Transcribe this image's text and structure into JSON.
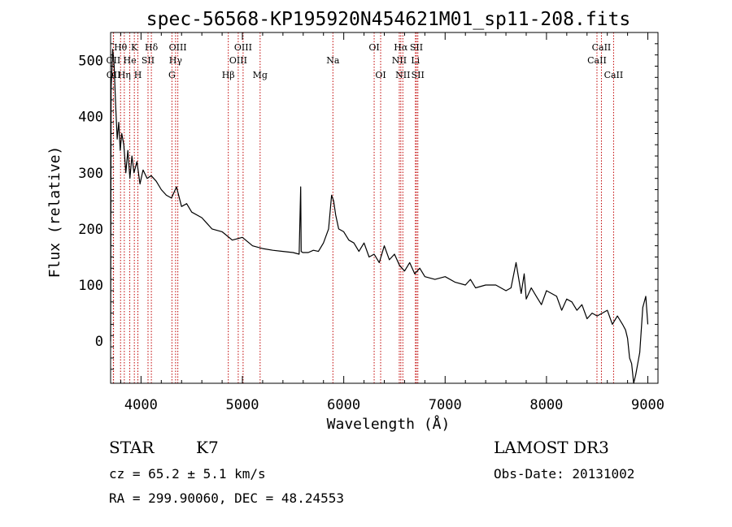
{
  "chart_data": {
    "type": "line",
    "title": "spec-56568-KP195920N454621M01_sp11-208.fits",
    "xlabel": "Wavelength (Å)",
    "ylabel": "Flux (relative)",
    "xlim": [
      3700,
      9100
    ],
    "ylim": [
      -75,
      550
    ],
    "xticks": [
      4000,
      5000,
      6000,
      7000,
      8000,
      9000
    ],
    "yticks": [
      0,
      100,
      200,
      300,
      400,
      500
    ],
    "series": [
      {
        "name": "flux",
        "color": "#000000",
        "x": [
          3700,
          3705,
          3712,
          3720,
          3735,
          3750,
          3765,
          3780,
          3795,
          3810,
          3830,
          3850,
          3870,
          3890,
          3910,
          3930,
          3960,
          3990,
          4020,
          4060,
          4100,
          4150,
          4200,
          4250,
          4300,
          4350,
          4400,
          4450,
          4500,
          4600,
          4700,
          4800,
          4900,
          5000,
          5100,
          5200,
          5300,
          5400,
          5500,
          5560,
          5575,
          5580,
          5595,
          5650,
          5700,
          5750,
          5800,
          5850,
          5880,
          5900,
          5920,
          5950,
          6000,
          6050,
          6100,
          6150,
          6200,
          6250,
          6300,
          6350,
          6400,
          6450,
          6500,
          6550,
          6600,
          6650,
          6700,
          6750,
          6800,
          6900,
          7000,
          7100,
          7200,
          7250,
          7300,
          7400,
          7500,
          7600,
          7650,
          7700,
          7750,
          7780,
          7800,
          7850,
          7900,
          7950,
          8000,
          8050,
          8100,
          8150,
          8200,
          8250,
          8300,
          8350,
          8400,
          8450,
          8500,
          8550,
          8600,
          8650,
          8700,
          8750,
          8780,
          8800,
          8820,
          8840,
          8860,
          8880,
          8900,
          8920,
          8950,
          8980,
          9000
        ],
        "y": [
          0,
          450,
          480,
          520,
          490,
          420,
          360,
          390,
          340,
          370,
          350,
          300,
          340,
          290,
          330,
          300,
          320,
          280,
          305,
          290,
          295,
          285,
          270,
          260,
          255,
          275,
          240,
          245,
          230,
          220,
          200,
          195,
          180,
          185,
          170,
          165,
          162,
          160,
          158,
          155,
          275,
          160,
          158,
          158,
          162,
          160,
          175,
          200,
          260,
          250,
          225,
          200,
          195,
          180,
          175,
          160,
          175,
          150,
          155,
          140,
          170,
          145,
          155,
          135,
          125,
          140,
          120,
          130,
          115,
          110,
          115,
          105,
          100,
          110,
          95,
          100,
          100,
          90,
          95,
          140,
          85,
          120,
          75,
          95,
          80,
          65,
          90,
          85,
          80,
          55,
          75,
          70,
          55,
          65,
          40,
          50,
          45,
          50,
          55,
          30,
          45,
          30,
          20,
          5,
          -30,
          -40,
          -75,
          -60,
          -40,
          -20,
          60,
          80,
          30
        ]
      }
    ],
    "lines": [
      {
        "name": "Hθ",
        "wave": 3798,
        "row": 1
      },
      {
        "name": "OII",
        "wave": 3727,
        "row": 2
      },
      {
        "name": "OII",
        "wave": 3729,
        "row": 3
      },
      {
        "name": "K",
        "wave": 3934,
        "row": 1
      },
      {
        "name": "Hη",
        "wave": 3835,
        "row": 3
      },
      {
        "name": "He",
        "wave": 3889,
        "row": 2
      },
      {
        "name": "H",
        "wave": 3969,
        "row": 3
      },
      {
        "name": "SII",
        "wave": 4069,
        "row": 2
      },
      {
        "name": "Hδ",
        "wave": 4102,
        "row": 1
      },
      {
        "name": "OIII",
        "wave": 4363,
        "row": 1
      },
      {
        "name": "Hγ",
        "wave": 4341,
        "row": 2
      },
      {
        "name": "G",
        "wave": 4305,
        "row": 3
      },
      {
        "name": "Hβ",
        "wave": 4861,
        "row": 3
      },
      {
        "name": "OIII",
        "wave": 5007,
        "row": 1
      },
      {
        "name": "OIII",
        "wave": 4959,
        "row": 2
      },
      {
        "name": "Mg",
        "wave": 5175,
        "row": 3
      },
      {
        "name": "Na",
        "wave": 5893,
        "row": 2
      },
      {
        "name": "OI",
        "wave": 6300,
        "row": 1
      },
      {
        "name": "OI",
        "wave": 6364,
        "row": 3
      },
      {
        "name": "Hα",
        "wave": 6563,
        "row": 1
      },
      {
        "name": "NII",
        "wave": 6548,
        "row": 2
      },
      {
        "name": "NII",
        "wave": 6583,
        "row": 3
      },
      {
        "name": "SII",
        "wave": 6717,
        "row": 1
      },
      {
        "name": "Li",
        "wave": 6707,
        "row": 2
      },
      {
        "name": "SII",
        "wave": 6731,
        "row": 3
      },
      {
        "name": "CaII",
        "wave": 8542,
        "row": 1
      },
      {
        "name": "CaII",
        "wave": 8498,
        "row": 2
      },
      {
        "name": "CaII",
        "wave": 8662,
        "row": 3
      }
    ]
  },
  "info": {
    "class_label": "STAR",
    "subclass": "K7",
    "survey": "LAMOST DR3",
    "redshift": "cz = 65.2 ± 5.1 km/s",
    "obs_date": "Obs-Date: 20131002",
    "coords": "RA = 299.90060, DEC =  48.24553"
  }
}
